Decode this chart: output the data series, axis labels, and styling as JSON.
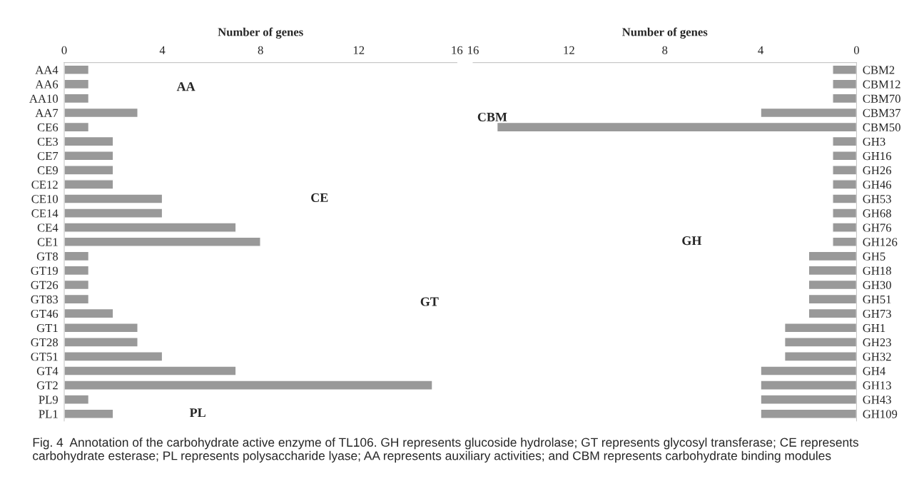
{
  "chart_data": [
    {
      "type": "bar",
      "orientation": "horizontal",
      "xlabel": "Number of genes",
      "xlim": [
        0,
        16
      ],
      "xticks": [
        0,
        4,
        8,
        12,
        16
      ],
      "color": "#999999",
      "grid": false,
      "categories": [
        "AA4",
        "AA6",
        "AA10",
        "AA7",
        "CE6",
        "CE3",
        "CE7",
        "CE9",
        "CE12",
        "CE10",
        "CE14",
        "CE4",
        "CE1",
        "GT8",
        "GT19",
        "GT26",
        "GT83",
        "GT46",
        "GT1",
        "GT28",
        "GT51",
        "GT4",
        "GT2",
        "PL9",
        "PL1"
      ],
      "values": [
        1,
        1,
        1,
        3,
        1,
        2,
        2,
        2,
        2,
        4,
        4,
        7,
        8,
        1,
        1,
        1,
        1,
        2,
        3,
        3,
        4,
        7,
        15,
        1,
        2
      ],
      "annotations": [
        "AA",
        "CE",
        "GT",
        "PL",
        "Fig. 4  Annotation of the carbohydrate active enzyme of TL106. GH represents glucoside hydrolase; GT represents glycosyl transferase; CE represents carbohydrate esterase; PL represents polysaccharide lyase; AA represents auxiliary activities; and CBM represents carbohydrate binding modules"
      ]
    },
    {
      "type": "bar",
      "orientation": "horizontal",
      "xlabel": "Number of genes",
      "xlim": [
        16,
        0
      ],
      "xticks": [
        16,
        12,
        8,
        4,
        0
      ],
      "color": "#999999",
      "grid": false,
      "categories": [
        "CBM2",
        "CBM12",
        "CBM70",
        "CBM37",
        "CBM50",
        "GH3",
        "GH16",
        "GH26",
        "GH46",
        "GH53",
        "GH68",
        "GH76",
        "GH126",
        "GH5",
        "GH18",
        "GH30",
        "GH51",
        "GH73",
        "GH1",
        "GH23",
        "GH32",
        "GH4",
        "GH13",
        "GH43",
        "GH109"
      ],
      "values": [
        1,
        1,
        1,
        4,
        15,
        1,
        1,
        1,
        1,
        1,
        1,
        1,
        1,
        2,
        2,
        2,
        2,
        2,
        3,
        3,
        3,
        4,
        4,
        4,
        4
      ],
      "annotations": [
        "CBM",
        "GH"
      ]
    }
  ]
}
